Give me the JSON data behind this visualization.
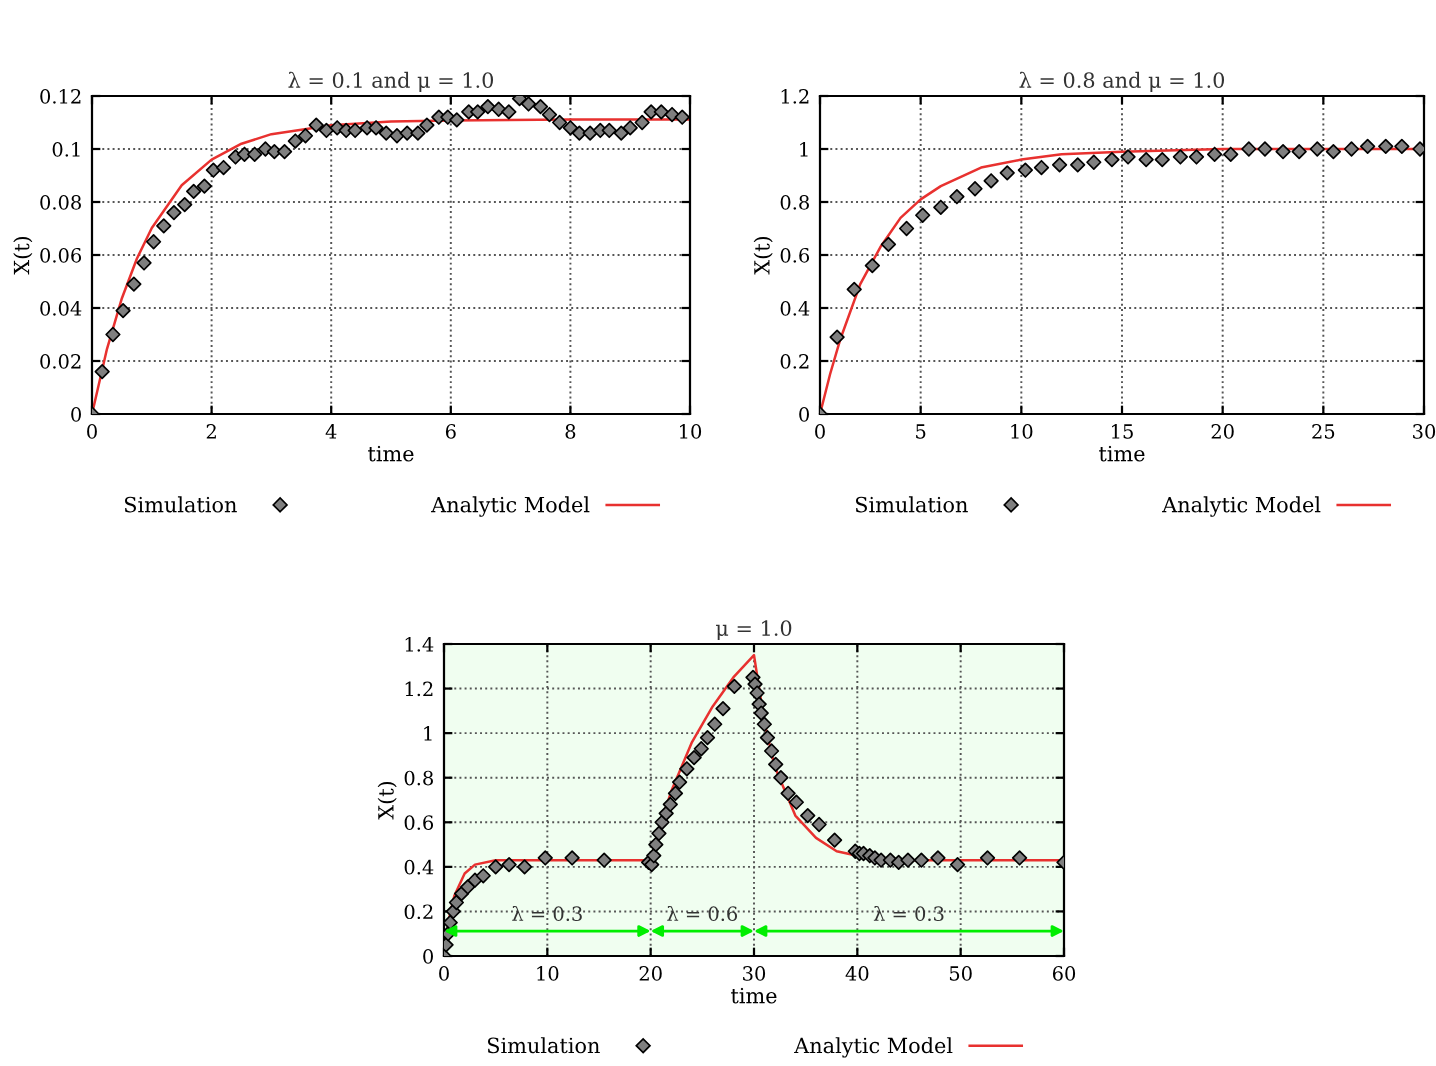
{
  "chart_data": [
    {
      "type": "scatter",
      "title": "λ = 0.1 and μ = 1.0",
      "xlabel": "time",
      "ylabel": "X(t)",
      "xlim": [
        0,
        10
      ],
      "ylim": [
        0,
        0.12
      ],
      "xticks": [
        0,
        2,
        4,
        6,
        8,
        10
      ],
      "yticks": [
        0,
        0.02,
        0.04,
        0.06,
        0.08,
        0.1,
        0.12
      ],
      "grid": true,
      "legend": "bottom",
      "series": [
        {
          "name": "Simulation",
          "marker": "diamond",
          "color": "#7f7f7f",
          "x": [
            0,
            0.17,
            0.35,
            0.52,
            0.7,
            0.87,
            1.03,
            1.2,
            1.37,
            1.55,
            1.7,
            1.88,
            2.03,
            2.2,
            2.4,
            2.55,
            2.72,
            2.9,
            3.05,
            3.22,
            3.4,
            3.57,
            3.75,
            3.92,
            4.1,
            4.25,
            4.4,
            4.6,
            4.75,
            4.92,
            5.1,
            5.27,
            5.45,
            5.6,
            5.8,
            5.95,
            6.1,
            6.3,
            6.45,
            6.62,
            6.8,
            6.97,
            7.15,
            7.3,
            7.5,
            7.65,
            7.82,
            8,
            8.15,
            8.33,
            8.5,
            8.65,
            8.85,
            9,
            9.2,
            9.35,
            9.52,
            9.7,
            9.87
          ],
          "values": [
            0,
            0.016,
            0.03,
            0.039,
            0.049,
            0.057,
            0.065,
            0.071,
            0.076,
            0.079,
            0.084,
            0.086,
            0.092,
            0.093,
            0.097,
            0.098,
            0.098,
            0.1,
            0.099,
            0.099,
            0.103,
            0.105,
            0.109,
            0.107,
            0.108,
            0.107,
            0.107,
            0.108,
            0.108,
            0.106,
            0.105,
            0.106,
            0.106,
            0.109,
            0.112,
            0.112,
            0.111,
            0.114,
            0.114,
            0.116,
            0.115,
            0.114,
            0.119,
            0.117,
            0.116,
            0.113,
            0.11,
            0.108,
            0.106,
            0.106,
            0.107,
            0.107,
            0.106,
            0.108,
            0.11,
            0.114,
            0.114,
            0.113,
            0.112
          ]
        },
        {
          "name": "Analytic Model",
          "type": "line",
          "line_style": "solid",
          "color": "#e8312f",
          "x": [
            0,
            0.25,
            0.5,
            0.75,
            1,
            1.5,
            2,
            2.5,
            3,
            4,
            5,
            6,
            8,
            10
          ],
          "values": [
            0,
            0.0245,
            0.0437,
            0.0586,
            0.0702,
            0.0863,
            0.096,
            0.102,
            0.1056,
            0.109,
            0.1104,
            0.1108,
            0.1111,
            0.1111
          ]
        }
      ]
    },
    {
      "type": "scatter",
      "title": "λ = 0.8 and μ = 1.0",
      "xlabel": "time",
      "ylabel": "X(t)",
      "xlim": [
        0,
        30
      ],
      "ylim": [
        0,
        1.2
      ],
      "xticks": [
        0,
        5,
        10,
        15,
        20,
        25,
        30
      ],
      "yticks": [
        0,
        0.2,
        0.4,
        0.6,
        0.8,
        1,
        1.2
      ],
      "grid": true,
      "legend": "bottom",
      "series": [
        {
          "name": "Simulation",
          "marker": "diamond",
          "color": "#7f7f7f",
          "x": [
            0,
            0.85,
            1.7,
            2.6,
            3.4,
            4.3,
            5.1,
            6,
            6.8,
            7.7,
            8.5,
            9.3,
            10.2,
            11,
            11.9,
            12.8,
            13.6,
            14.5,
            15.3,
            16.2,
            17,
            17.9,
            18.7,
            19.6,
            20.4,
            21.3,
            22.1,
            23,
            23.8,
            24.7,
            25.5,
            26.4,
            27.2,
            28.1,
            28.9,
            29.8
          ],
          "values": [
            0,
            0.29,
            0.47,
            0.56,
            0.64,
            0.7,
            0.75,
            0.78,
            0.82,
            0.85,
            0.88,
            0.91,
            0.92,
            0.93,
            0.94,
            0.94,
            0.95,
            0.96,
            0.97,
            0.96,
            0.96,
            0.97,
            0.97,
            0.98,
            0.98,
            1.0,
            1.0,
            0.99,
            0.99,
            1.0,
            0.99,
            1.0,
            1.01,
            1.01,
            1.01,
            1.0
          ]
        },
        {
          "name": "Analytic Model",
          "type": "line",
          "line_style": "solid",
          "color": "#e8312f",
          "x": [
            0,
            0.5,
            1,
            2,
            3,
            4,
            5,
            6,
            8,
            10,
            12,
            15,
            20,
            30
          ],
          "values": [
            0,
            0.15,
            0.28,
            0.49,
            0.63,
            0.74,
            0.81,
            0.86,
            0.93,
            0.96,
            0.98,
            0.99,
            1.0,
            1.0
          ]
        }
      ]
    },
    {
      "type": "scatter",
      "title": "μ = 1.0",
      "xlabel": "time",
      "ylabel": "X(t)",
      "xlim": [
        0,
        60
      ],
      "ylim": [
        0,
        1.4
      ],
      "xticks": [
        0,
        10,
        20,
        30,
        40,
        50,
        60
      ],
      "yticks": [
        0,
        0.2,
        0.4,
        0.6,
        0.8,
        1,
        1.2,
        1.4
      ],
      "grid": true,
      "legend": "bottom",
      "bands": [
        {
          "axis": "x",
          "from": 0,
          "to": 20,
          "label": "λ = 0.3",
          "color": "#00ee00"
        },
        {
          "axis": "x",
          "from": 20,
          "to": 30,
          "label": "λ = 0.6",
          "color": "#00ee00"
        },
        {
          "axis": "x",
          "from": 30,
          "to": 60,
          "label": "λ = 0.3",
          "color": "#00ee00"
        }
      ],
      "series": [
        {
          "name": "Simulation",
          "marker": "diamond",
          "color": "#7f7f7f",
          "x": [
            0,
            0.2,
            0.4,
            0.6,
            0.9,
            1.2,
            1.7,
            2.3,
            3,
            3.8,
            5,
            6.3,
            7.8,
            9.8,
            12.4,
            15.5,
            19.8,
            20.1,
            20.3,
            20.5,
            20.8,
            21.1,
            21.5,
            21.9,
            22.4,
            22.8,
            23.5,
            24.2,
            24.9,
            25.5,
            26.2,
            27,
            28.1,
            29.9,
            30.1,
            30.3,
            30.5,
            30.7,
            31,
            31.3,
            31.7,
            32.1,
            32.6,
            33.3,
            34.1,
            35.2,
            36.3,
            37.8,
            39.8,
            40.2,
            40.6,
            41.2,
            41.7,
            42.3,
            43.2,
            44,
            44.9,
            46.2,
            47.8,
            49.7,
            52.6,
            55.7,
            60
          ],
          "values": [
            0,
            0.05,
            0.1,
            0.15,
            0.2,
            0.24,
            0.28,
            0.31,
            0.34,
            0.36,
            0.4,
            0.41,
            0.4,
            0.44,
            0.44,
            0.43,
            0.42,
            0.41,
            0.45,
            0.5,
            0.55,
            0.6,
            0.64,
            0.68,
            0.73,
            0.78,
            0.84,
            0.89,
            0.93,
            0.98,
            1.04,
            1.11,
            1.21,
            1.25,
            1.22,
            1.18,
            1.13,
            1.09,
            1.04,
            0.98,
            0.92,
            0.86,
            0.8,
            0.73,
            0.69,
            0.63,
            0.59,
            0.52,
            0.47,
            0.46,
            0.46,
            0.45,
            0.44,
            0.43,
            0.43,
            0.42,
            0.43,
            0.43,
            0.44,
            0.41,
            0.44,
            0.44,
            0.42
          ]
        },
        {
          "name": "Analytic Model",
          "type": "line",
          "line_style": "solid",
          "color": "#e8312f",
          "x": [
            0,
            0.5,
            1,
            2,
            3,
            5,
            20,
            21,
            22,
            24,
            26,
            28,
            30,
            31,
            32,
            34,
            36,
            38,
            40,
            45,
            60
          ],
          "values": [
            0,
            0.17,
            0.27,
            0.37,
            0.41,
            0.43,
            0.43,
            0.6,
            0.74,
            0.96,
            1.12,
            1.25,
            1.35,
            1.05,
            0.85,
            0.63,
            0.53,
            0.47,
            0.45,
            0.43,
            0.43
          ]
        }
      ]
    }
  ]
}
